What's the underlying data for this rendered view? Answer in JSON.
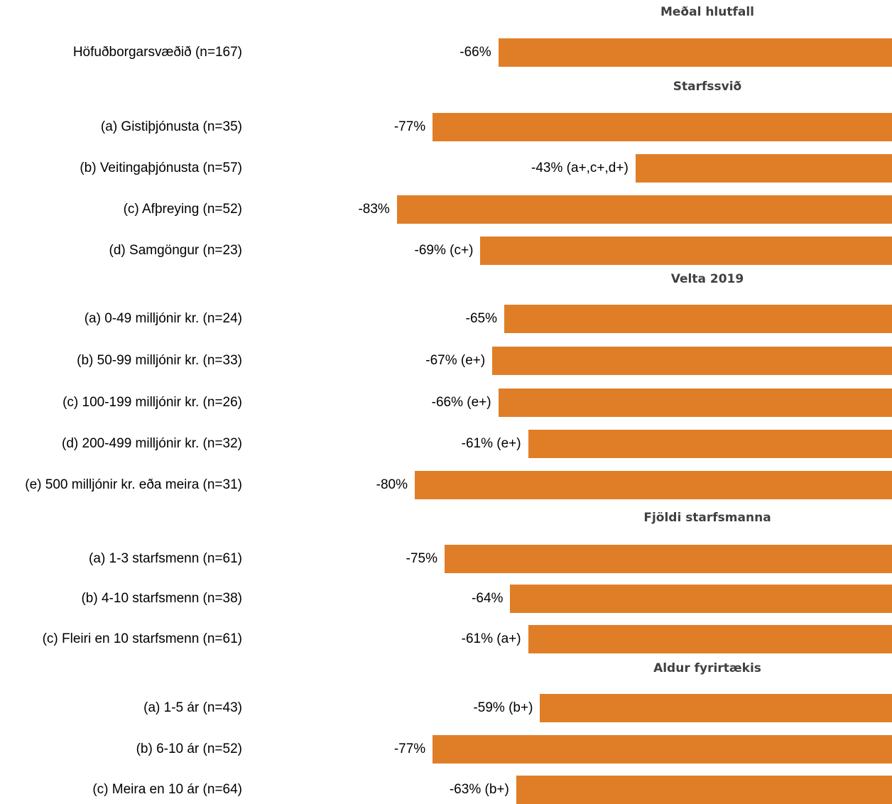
{
  "chart_data": {
    "type": "bar",
    "orientation": "horizontal",
    "bar_color": "#E07E28",
    "xlim": [
      -100,
      0
    ],
    "groups": [
      {
        "title": "Meðal hlutfall",
        "items": [
          {
            "label": "Höfuðborgarsvæðið (n=167)",
            "value": -66,
            "value_label": "-66%"
          }
        ]
      },
      {
        "title": "Starfssvið",
        "items": [
          {
            "label": "(a) Gistiþjónusta (n=35)",
            "value": -77,
            "value_label": "-77%"
          },
          {
            "label": "(b) Veitingaþjónusta (n=57)",
            "value": -43,
            "value_label": "-43% (a+,c+,d+)"
          },
          {
            "label": "(c) Afþreying (n=52)",
            "value": -83,
            "value_label": "-83%"
          },
          {
            "label": "(d) Samgöngur (n=23)",
            "value": -69,
            "value_label": "-69% (c+)"
          }
        ]
      },
      {
        "title": "Velta 2019",
        "items": [
          {
            "label": "(a) 0-49 milljónir kr. (n=24)",
            "value": -65,
            "value_label": "-65%"
          },
          {
            "label": "(b) 50-99 milljónir kr. (n=33)",
            "value": -67,
            "value_label": "-67% (e+)"
          },
          {
            "label": "(c) 100-199 milljónir kr. (n=26)",
            "value": -66,
            "value_label": "-66% (e+)"
          },
          {
            "label": "(d) 200-499 milljónir kr. (n=32)",
            "value": -61,
            "value_label": "-61% (e+)"
          },
          {
            "label": "(e) 500 milljónir kr. eða meira (n=31)",
            "value": -80,
            "value_label": "-80%"
          }
        ]
      },
      {
        "title": "Fjöldi starfsmanna",
        "items": [
          {
            "label": "(a) 1-3 starfsmenn (n=61)",
            "value": -75,
            "value_label": "-75%"
          },
          {
            "label": "(b) 4-10 starfsmenn (n=38)",
            "value": -64,
            "value_label": "-64%"
          },
          {
            "label": "(c) Fleiri en 10 starfsmenn (n=61)",
            "value": -61,
            "value_label": "-61% (a+)"
          }
        ]
      },
      {
        "title": "Aldur fyrirtækis",
        "items": [
          {
            "label": "(a) 1-5 ár (n=43)",
            "value": -59,
            "value_label": "-59% (b+)"
          },
          {
            "label": "(b) 6-10 ár (n=52)",
            "value": -77,
            "value_label": "-77%"
          },
          {
            "label": "(c) Meira en 10 ár (n=64)",
            "value": -63,
            "value_label": "-63% (b+)"
          }
        ]
      }
    ]
  }
}
